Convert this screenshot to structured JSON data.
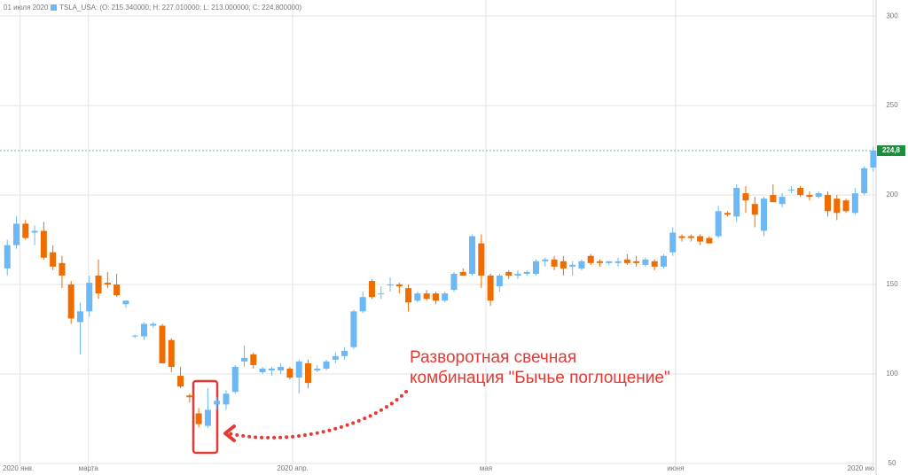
{
  "chart_data": {
    "type": "candlestick",
    "header_date": "01 июля 2020",
    "legend_text": "TSLA_USA: (O: 215.340000; H: 227.010000; L: 213.000000; C: 224.800000)",
    "legend_color": "#6cb8f5",
    "up_color": "#6cb8f5",
    "down_color": "#ef6c00",
    "open": [
      159,
      172,
      184,
      179,
      180,
      168,
      162,
      150,
      129,
      135,
      155,
      151,
      150,
      139,
      121,
      121,
      127,
      127,
      119,
      99,
      88,
      78,
      71,
      83,
      83,
      90,
      107,
      111,
      101,
      102,
      102,
      103,
      98,
      106,
      102,
      103,
      108,
      110,
      115,
      135,
      152,
      145,
      150,
      150,
      148,
      141,
      145,
      145,
      141,
      147,
      157,
      156,
      173,
      155,
      149,
      157,
      155,
      156,
      156,
      163,
      164,
      163,
      160,
      159,
      166,
      163,
      162,
      162,
      164,
      163,
      161,
      163,
      160,
      168,
      177,
      177,
      177,
      176,
      177,
      190,
      188,
      201,
      195,
      180,
      200,
      195,
      203,
      204,
      200,
      199,
      200,
      198,
      197,
      190,
      201,
      215.34
    ],
    "high": [
      175,
      188,
      186,
      183,
      185,
      172,
      166,
      152,
      140,
      155,
      164,
      157,
      156,
      141,
      122,
      129,
      129,
      128,
      120,
      104,
      89,
      81,
      92,
      87,
      91,
      105,
      116,
      112,
      104,
      104,
      106,
      104,
      108,
      108,
      105,
      108,
      112,
      115,
      136,
      146,
      153,
      149,
      154,
      151,
      150,
      146,
      147,
      146,
      146,
      157,
      159,
      178,
      178,
      156,
      156,
      158,
      158,
      158,
      164,
      165,
      166,
      166,
      163,
      164,
      167,
      164,
      163,
      165,
      167,
      166,
      165,
      164,
      167,
      182,
      178,
      178,
      178,
      177,
      194,
      191,
      206,
      205,
      199,
      199,
      206,
      201,
      205,
      205,
      202,
      202,
      202,
      200,
      198,
      204,
      216,
      227.01
    ],
    "low": [
      155,
      170,
      175,
      172,
      164,
      158,
      148,
      128,
      111,
      132,
      142,
      148,
      143,
      137,
      120,
      119,
      126,
      106,
      101,
      92,
      84,
      70,
      70,
      80,
      80,
      89,
      104,
      103,
      100,
      99,
      100,
      97,
      89,
      92,
      101,
      102,
      106,
      108,
      114,
      134,
      142,
      142,
      146,
      145,
      135,
      140,
      141,
      139,
      140,
      146,
      155,
      155,
      148,
      138,
      146,
      153,
      153,
      155,
      155,
      160,
      158,
      155,
      155,
      158,
      161,
      160,
      161,
      160,
      161,
      160,
      160,
      158,
      159,
      166,
      174,
      174,
      172,
      173,
      176,
      188,
      185,
      190,
      182,
      177,
      196,
      193,
      201,
      199,
      197,
      198,
      188,
      186,
      190,
      189,
      200,
      213
    ],
    "close": [
      172,
      184,
      176,
      180,
      165,
      160,
      155,
      131,
      135,
      151,
      145,
      150,
      144,
      141,
      121.5,
      128,
      128,
      106,
      104,
      93,
      87,
      72,
      80,
      85,
      89,
      104,
      109,
      105,
      103,
      103,
      104,
      98,
      107,
      95,
      103,
      107,
      110,
      113,
      135,
      143,
      143,
      145,
      150,
      149,
      140,
      145,
      142,
      141,
      145,
      156,
      155,
      177,
      155,
      141,
      155,
      155,
      156,
      157,
      163,
      164,
      160,
      159,
      161,
      163,
      162,
      162,
      163,
      163,
      162,
      162,
      164,
      160,
      166,
      179,
      176,
      176,
      174,
      173,
      191,
      189,
      204,
      197,
      189,
      198,
      196,
      199,
      203,
      200,
      199,
      201,
      191,
      190,
      191,
      201,
      215,
      224.8
    ],
    "xlim": [
      -0.8,
      95.3
    ],
    "xticks": [
      {
        "value": 1.4,
        "label": "2020 янв."
      },
      {
        "value": 8.9,
        "label": "марта"
      },
      {
        "value": 31.3,
        "label": "2020 апр."
      },
      {
        "value": 52.5,
        "label": "мая"
      },
      {
        "value": 73.3,
        "label": "июня"
      },
      {
        "value": 95.0,
        "label": "2020 ию"
      }
    ],
    "ylim": [
      50,
      308
    ],
    "yticks": [
      50,
      100,
      150,
      200,
      250,
      300
    ],
    "grid": true,
    "last_price": {
      "value": 224.8,
      "label": "224,8",
      "color": "#1e8e3e"
    },
    "annotation": [
      "Разворотная свечная",
      "комбинация \"Бычье поглощение\""
    ],
    "annotation_color": "#e53935"
  }
}
